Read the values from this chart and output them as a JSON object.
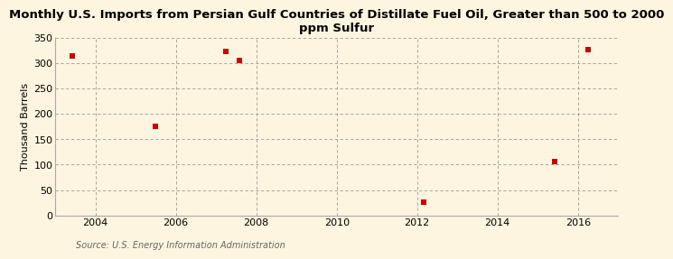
{
  "title": "Monthly U.S. Imports from Persian Gulf Countries of Distillate Fuel Oil, Greater than 500 to 2000\nppm Sulfur",
  "ylabel": "Thousand Barrels",
  "source": "Source: U.S. Energy Information Administration",
  "background_color": "#fdf5e0",
  "plot_bg_color": "#fdf5e0",
  "grid_color": "#999999",
  "marker_color": "#cc0000",
  "data_x": [
    2003.42,
    2005.5,
    2007.25,
    2007.58,
    2012.17,
    2015.42,
    2016.25
  ],
  "data_y": [
    313,
    175,
    323,
    305,
    27,
    107,
    326
  ],
  "xlim": [
    2003.0,
    2017.0
  ],
  "ylim": [
    0,
    350
  ],
  "xticks": [
    2004,
    2006,
    2008,
    2010,
    2012,
    2014,
    2016
  ],
  "yticks": [
    0,
    50,
    100,
    150,
    200,
    250,
    300,
    350
  ],
  "title_fontsize": 9.5,
  "label_fontsize": 8,
  "tick_fontsize": 8,
  "source_fontsize": 7,
  "marker_size": 18
}
